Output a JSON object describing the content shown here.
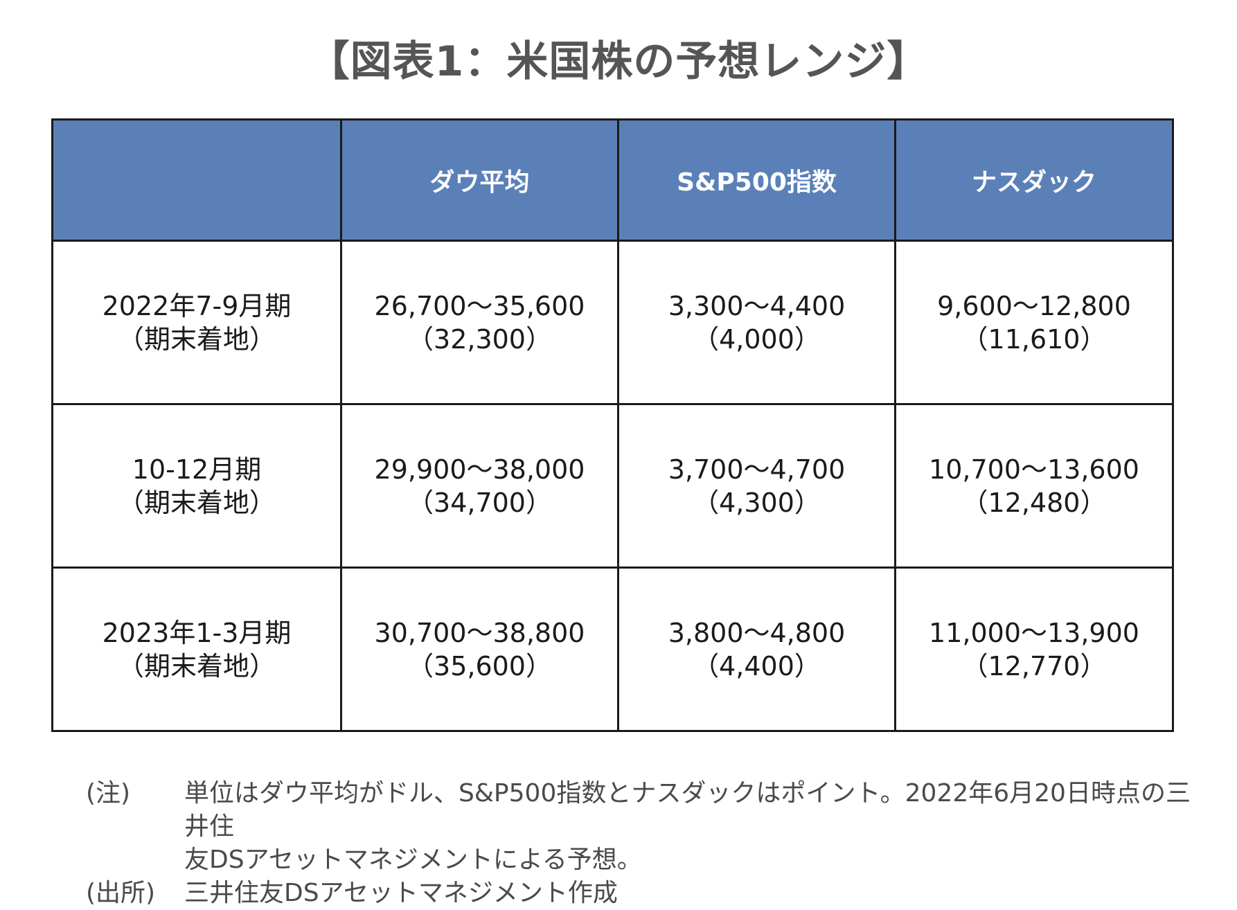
{
  "title": "【図表1：米国株の予想レンジ】",
  "table": {
    "headers": [
      "",
      "ダウ平均",
      "S&P500指数",
      "ナスダック"
    ],
    "rows": [
      {
        "period": [
          "2022年7-9月期",
          "（期末着地）"
        ],
        "dow": [
          "26,700～35,600",
          "（32,300）"
        ],
        "sp500": [
          "3,300～4,400",
          "（4,000）"
        ],
        "nasdaq": [
          "9,600～12,800",
          "（11,610）"
        ]
      },
      {
        "period": [
          "10-12月期",
          "（期末着地）"
        ],
        "dow": [
          "29,900～38,000",
          "（34,700）"
        ],
        "sp500": [
          "3,700～4,700",
          "（4,300）"
        ],
        "nasdaq": [
          "10,700～13,600",
          "（12,480）"
        ]
      },
      {
        "period": [
          "2023年1-3月期",
          "（期末着地）"
        ],
        "dow": [
          "30,700～38,800",
          "（35,600）"
        ],
        "sp500": [
          "3,800～4,800",
          "（4,400）"
        ],
        "nasdaq": [
          "11,000～13,900",
          "（12,770）"
        ]
      }
    ]
  },
  "notes": {
    "note_label": "(注)",
    "note_line1": "単位はダウ平均がドル、S&P500指数とナスダックはポイント。2022年6月20日時点の三井住",
    "note_line2": "友DSアセットマネジメントによる予想。",
    "source_label": "(出所)",
    "source_text": "三井住友DSアセットマネジメント作成"
  },
  "colors": {
    "header_bg": "#5b80b8",
    "header_text": "#ffffff",
    "title_text": "#555555",
    "border": "#1a1a1a"
  }
}
